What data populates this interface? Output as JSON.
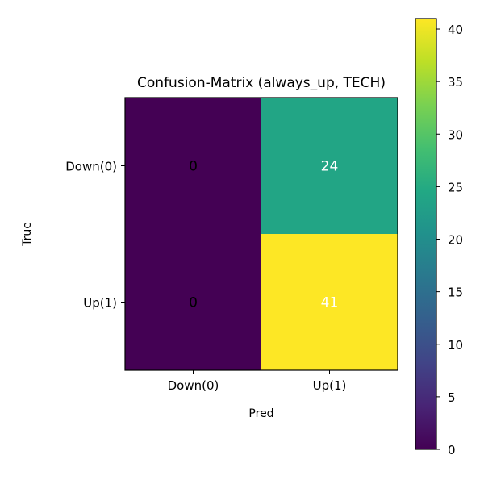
{
  "chart_data": {
    "type": "heatmap",
    "title": "Confusion-Matrix (always_up, TECH)",
    "xlabel": "Pred",
    "ylabel": "True",
    "x_categories": [
      "Down(0)",
      "Up(1)"
    ],
    "y_categories": [
      "Down(0)",
      "Up(1)"
    ],
    "values": [
      [
        0,
        24
      ],
      [
        0,
        41
      ]
    ],
    "colormap": "viridis",
    "colorbar": {
      "min": 0,
      "max": 41,
      "ticks": [
        0,
        5,
        10,
        15,
        20,
        25,
        30,
        35,
        40
      ]
    },
    "grid": false
  }
}
